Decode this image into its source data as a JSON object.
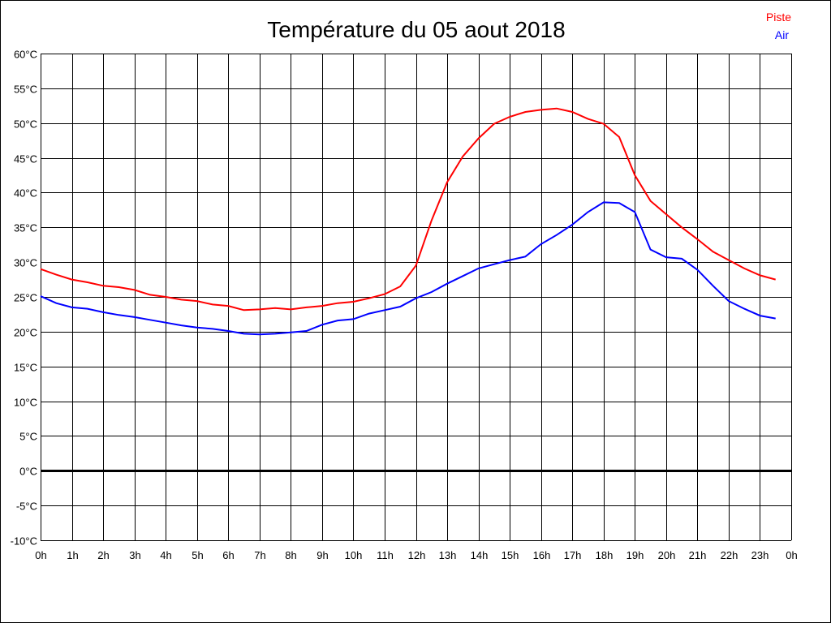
{
  "chart_data": {
    "type": "line",
    "title": "Température du 05 aout 2018",
    "xlabel": "",
    "ylabel": "",
    "x_ticks": [
      "0h",
      "1h",
      "2h",
      "3h",
      "4h",
      "5h",
      "6h",
      "7h",
      "8h",
      "9h",
      "10h",
      "11h",
      "12h",
      "13h",
      "14h",
      "15h",
      "16h",
      "17h",
      "18h",
      "19h",
      "20h",
      "21h",
      "22h",
      "23h",
      "0h"
    ],
    "y_ticks": [
      "60°C",
      "55°C",
      "50°C",
      "45°C",
      "40°C",
      "35°C",
      "30°C",
      "25°C",
      "20°C",
      "15°C",
      "10°C",
      "5°C",
      "0°C",
      "-5°C",
      "-10°C"
    ],
    "xlim": [
      0,
      24
    ],
    "ylim": [
      -10,
      60
    ],
    "grid": true,
    "legend_placement": "top-right",
    "x": [
      0,
      0.5,
      1,
      1.5,
      2,
      2.5,
      3,
      3.5,
      4,
      4.5,
      5,
      5.5,
      6,
      6.5,
      7,
      7.5,
      8,
      8.5,
      9,
      9.5,
      10,
      10.5,
      11,
      11.5,
      12,
      12.5,
      13,
      13.5,
      14,
      14.5,
      15,
      15.5,
      16,
      16.5,
      17,
      17.5,
      18,
      18.5,
      19,
      19.5,
      20,
      20.5,
      21,
      21.5,
      22,
      22.5,
      23,
      23.5
    ],
    "series": [
      {
        "name": "Piste",
        "color": "#ff0000",
        "values": [
          29.0,
          28.2,
          27.5,
          27.1,
          26.6,
          26.4,
          26.0,
          25.3,
          25.0,
          24.6,
          24.4,
          23.9,
          23.7,
          23.1,
          23.2,
          23.4,
          23.2,
          23.5,
          23.7,
          24.1,
          24.3,
          24.8,
          25.4,
          26.5,
          29.5,
          36.0,
          41.5,
          45.2,
          47.8,
          49.9,
          50.9,
          51.6,
          51.9,
          52.1,
          51.6,
          50.6,
          49.9,
          48.0,
          42.5,
          38.8,
          36.9,
          35.0,
          33.3,
          31.5,
          30.3,
          29.1,
          28.1,
          27.5
        ]
      },
      {
        "name": "Air",
        "color": "#0000ff",
        "values": [
          25.1,
          24.1,
          23.5,
          23.3,
          22.8,
          22.4,
          22.1,
          21.7,
          21.3,
          20.9,
          20.6,
          20.4,
          20.1,
          19.7,
          19.6,
          19.7,
          19.9,
          20.1,
          21.0,
          21.6,
          21.8,
          22.6,
          23.1,
          23.6,
          24.8,
          25.7,
          26.9,
          28.0,
          29.1,
          29.7,
          30.3,
          30.8,
          32.6,
          33.9,
          35.4,
          37.2,
          38.6,
          38.5,
          37.2,
          31.8,
          30.7,
          30.5,
          28.9,
          26.6,
          24.4,
          23.3,
          22.3,
          21.9
        ]
      }
    ]
  }
}
